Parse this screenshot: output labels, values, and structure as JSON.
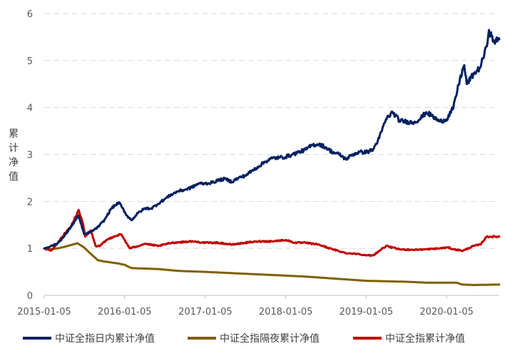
{
  "chart_data": {
    "type": "line",
    "title": "",
    "xlabel": "",
    "ylabel": "累计净值",
    "x_type": "date",
    "xlim": [
      "2015-01-05",
      "2020-08-31"
    ],
    "ylim": [
      0,
      6
    ],
    "yticks": [
      0,
      1,
      2,
      3,
      4,
      5,
      6
    ],
    "xticks": [
      "2015-01-05",
      "2016-01-05",
      "2017-01-05",
      "2018-01-05",
      "2019-01-05",
      "2020-01-05"
    ],
    "grid": "horizontal-dashed",
    "legend_position": "bottom",
    "series": [
      {
        "name": "中证全指日内累计净值",
        "color": "#002060",
        "points": [
          [
            "2015-01-05",
            1.0
          ],
          [
            "2015-02-05",
            1.05
          ],
          [
            "2015-03-05",
            1.1
          ],
          [
            "2015-04-05",
            1.25
          ],
          [
            "2015-05-05",
            1.45
          ],
          [
            "2015-06-10",
            1.7
          ],
          [
            "2015-07-05",
            1.3
          ],
          [
            "2015-08-05",
            1.35
          ],
          [
            "2015-09-05",
            1.45
          ],
          [
            "2015-10-05",
            1.6
          ],
          [
            "2015-11-05",
            1.85
          ],
          [
            "2015-12-10",
            1.98
          ],
          [
            "2016-01-15",
            1.7
          ],
          [
            "2016-02-05",
            1.6
          ],
          [
            "2016-03-05",
            1.75
          ],
          [
            "2016-04-05",
            1.85
          ],
          [
            "2016-05-05",
            1.85
          ],
          [
            "2016-06-05",
            1.95
          ],
          [
            "2016-07-05",
            2.05
          ],
          [
            "2016-08-05",
            2.15
          ],
          [
            "2016-09-05",
            2.22
          ],
          [
            "2016-10-05",
            2.25
          ],
          [
            "2016-11-05",
            2.3
          ],
          [
            "2016-12-05",
            2.38
          ],
          [
            "2017-01-05",
            2.38
          ],
          [
            "2017-02-05",
            2.4
          ],
          [
            "2017-03-05",
            2.45
          ],
          [
            "2017-04-05",
            2.48
          ],
          [
            "2017-05-05",
            2.42
          ],
          [
            "2017-06-05",
            2.5
          ],
          [
            "2017-07-05",
            2.55
          ],
          [
            "2017-08-05",
            2.65
          ],
          [
            "2017-09-05",
            2.75
          ],
          [
            "2017-10-05",
            2.85
          ],
          [
            "2017-11-05",
            2.92
          ],
          [
            "2017-12-05",
            2.93
          ],
          [
            "2018-01-05",
            2.95
          ],
          [
            "2018-02-05",
            3.0
          ],
          [
            "2018-03-05",
            3.05
          ],
          [
            "2018-04-05",
            3.1
          ],
          [
            "2018-05-05",
            3.2
          ],
          [
            "2018-06-05",
            3.22
          ],
          [
            "2018-07-05",
            3.15
          ],
          [
            "2018-08-05",
            3.05
          ],
          [
            "2018-09-05",
            3.0
          ],
          [
            "2018-10-05",
            2.9
          ],
          [
            "2018-11-05",
            3.0
          ],
          [
            "2018-12-05",
            3.05
          ],
          [
            "2019-01-05",
            3.05
          ],
          [
            "2019-02-05",
            3.1
          ],
          [
            "2019-03-05",
            3.35
          ],
          [
            "2019-04-05",
            3.75
          ],
          [
            "2019-05-05",
            3.9
          ],
          [
            "2019-06-05",
            3.72
          ],
          [
            "2019-07-05",
            3.7
          ],
          [
            "2019-08-05",
            3.68
          ],
          [
            "2019-09-05",
            3.75
          ],
          [
            "2019-10-05",
            3.9
          ],
          [
            "2019-11-05",
            3.8
          ],
          [
            "2019-12-05",
            3.7
          ],
          [
            "2020-01-05",
            3.75
          ],
          [
            "2020-02-05",
            4.0
          ],
          [
            "2020-03-05",
            4.6
          ],
          [
            "2020-03-25",
            4.9
          ],
          [
            "2020-04-05",
            4.5
          ],
          [
            "2020-05-05",
            4.7
          ],
          [
            "2020-06-05",
            4.85
          ],
          [
            "2020-07-05",
            5.3
          ],
          [
            "2020-07-15",
            5.65
          ],
          [
            "2020-08-05",
            5.4
          ],
          [
            "2020-08-31",
            5.45
          ]
        ]
      },
      {
        "name": "中证全指隔夜累计净值",
        "color": "#7F6000",
        "points": [
          [
            "2015-01-05",
            1.0
          ],
          [
            "2015-02-05",
            0.98
          ],
          [
            "2015-03-05",
            1.0
          ],
          [
            "2015-04-05",
            1.03
          ],
          [
            "2015-05-05",
            1.07
          ],
          [
            "2015-06-05",
            1.11
          ],
          [
            "2015-07-05",
            1.02
          ],
          [
            "2015-08-05",
            0.88
          ],
          [
            "2015-09-05",
            0.75
          ],
          [
            "2015-10-05",
            0.72
          ],
          [
            "2015-11-05",
            0.7
          ],
          [
            "2015-12-05",
            0.68
          ],
          [
            "2016-01-05",
            0.65
          ],
          [
            "2016-02-05",
            0.58
          ],
          [
            "2016-04-05",
            0.57
          ],
          [
            "2016-06-05",
            0.56
          ],
          [
            "2016-09-05",
            0.52
          ],
          [
            "2017-01-05",
            0.5
          ],
          [
            "2017-04-05",
            0.48
          ],
          [
            "2017-07-05",
            0.46
          ],
          [
            "2017-10-05",
            0.44
          ],
          [
            "2018-01-05",
            0.42
          ],
          [
            "2018-04-05",
            0.4
          ],
          [
            "2018-07-05",
            0.37
          ],
          [
            "2018-10-05",
            0.34
          ],
          [
            "2019-01-05",
            0.31
          ],
          [
            "2019-04-05",
            0.3
          ],
          [
            "2019-07-05",
            0.29
          ],
          [
            "2019-10-05",
            0.27
          ],
          [
            "2020-01-05",
            0.27
          ],
          [
            "2020-02-20",
            0.27
          ],
          [
            "2020-03-15",
            0.23
          ],
          [
            "2020-05-05",
            0.22
          ],
          [
            "2020-08-31",
            0.23
          ]
        ]
      },
      {
        "name": "中证全指累计净值",
        "color": "#C00000",
        "points": [
          [
            "2015-01-05",
            1.0
          ],
          [
            "2015-02-05",
            0.95
          ],
          [
            "2015-03-05",
            1.1
          ],
          [
            "2015-04-05",
            1.3
          ],
          [
            "2015-05-05",
            1.45
          ],
          [
            "2015-06-10",
            1.82
          ],
          [
            "2015-07-01",
            1.5
          ],
          [
            "2015-07-10",
            1.25
          ],
          [
            "2015-08-05",
            1.38
          ],
          [
            "2015-08-26",
            1.05
          ],
          [
            "2015-09-15",
            1.05
          ],
          [
            "2015-10-15",
            1.18
          ],
          [
            "2015-11-15",
            1.25
          ],
          [
            "2015-12-20",
            1.3
          ],
          [
            "2016-01-15",
            1.1
          ],
          [
            "2016-01-28",
            1.0
          ],
          [
            "2016-03-05",
            1.05
          ],
          [
            "2016-04-05",
            1.1
          ],
          [
            "2016-06-05",
            1.05
          ],
          [
            "2016-08-05",
            1.12
          ],
          [
            "2016-11-05",
            1.15
          ],
          [
            "2017-01-05",
            1.12
          ],
          [
            "2017-03-05",
            1.12
          ],
          [
            "2017-05-05",
            1.08
          ],
          [
            "2017-07-05",
            1.12
          ],
          [
            "2017-09-05",
            1.15
          ],
          [
            "2017-11-05",
            1.15
          ],
          [
            "2018-01-05",
            1.18
          ],
          [
            "2018-02-15",
            1.12
          ],
          [
            "2018-04-05",
            1.12
          ],
          [
            "2018-06-05",
            1.08
          ],
          [
            "2018-08-05",
            0.98
          ],
          [
            "2018-10-05",
            0.9
          ],
          [
            "2018-12-05",
            0.88
          ],
          [
            "2019-01-05",
            0.85
          ],
          [
            "2019-02-05",
            0.85
          ],
          [
            "2019-04-05",
            1.05
          ],
          [
            "2019-06-05",
            0.98
          ],
          [
            "2019-08-05",
            0.97
          ],
          [
            "2019-10-05",
            0.98
          ],
          [
            "2019-12-05",
            1.0
          ],
          [
            "2020-01-10",
            1.02
          ],
          [
            "2020-02-05",
            0.98
          ],
          [
            "2020-03-20",
            0.95
          ],
          [
            "2020-05-05",
            1.05
          ],
          [
            "2020-06-05",
            1.08
          ],
          [
            "2020-07-05",
            1.25
          ],
          [
            "2020-08-31",
            1.25
          ]
        ]
      }
    ]
  }
}
